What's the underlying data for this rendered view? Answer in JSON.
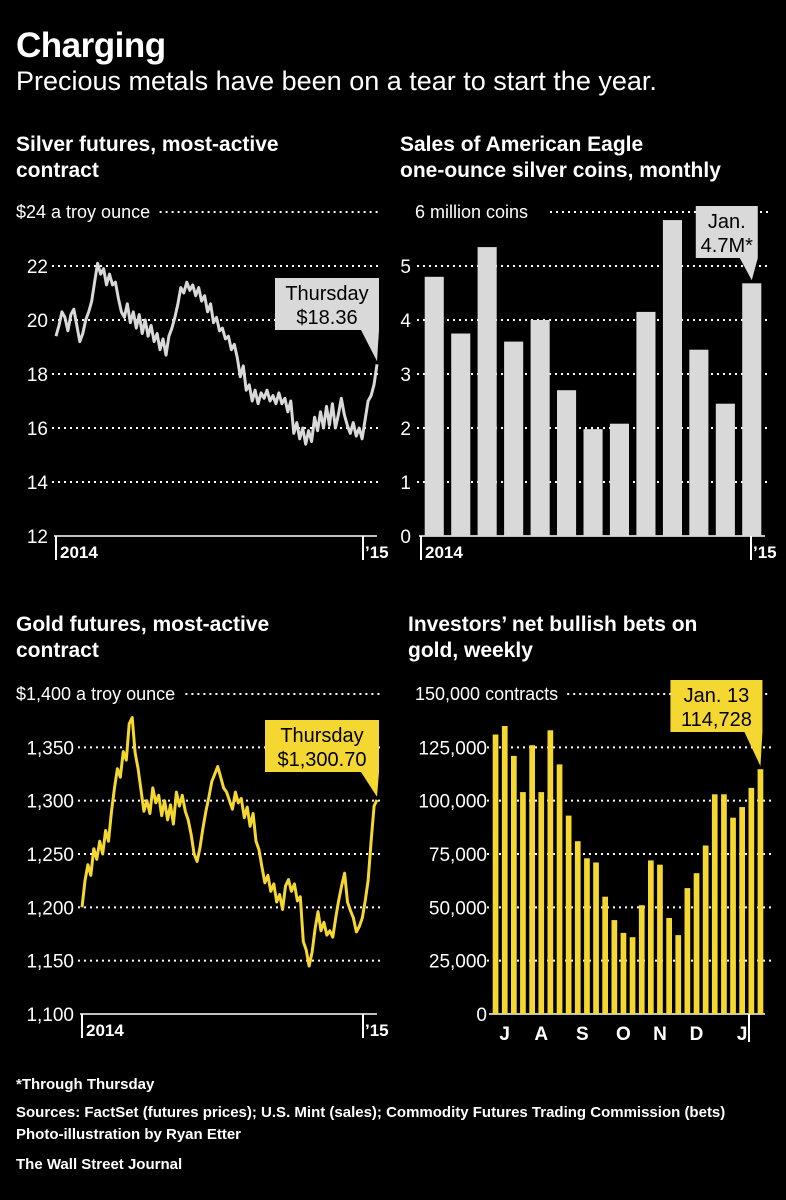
{
  "header": {
    "title": "Charging",
    "subtitle": "Precious metals have been on a tear to start the year."
  },
  "footer": {
    "footnote": "*Through Thursday",
    "sources": "Sources: FactSet (futures prices); U.S. Mint (sales); Commodity Futures Trading Commission (bets)",
    "photo_credit": "Photo-illustration by Ryan Etter",
    "publisher": "The Wall Street Journal"
  },
  "colors": {
    "background": "#000000",
    "silver": "#d9d9d9",
    "gold": "#f5d731",
    "grid": "#ffffff"
  },
  "chart_data": [
    {
      "id": "silver-futures",
      "type": "line",
      "title": "Silver futures, most-active contract",
      "title_lines": [
        "Silver futures, most-active",
        "contract"
      ],
      "unit_label": "$24 a troy ounce",
      "ylim": [
        12,
        24
      ],
      "yticks": [
        12,
        14,
        16,
        18,
        20,
        22,
        24
      ],
      "ytick_labels": [
        "12",
        "14",
        "16",
        "18",
        "20",
        "22",
        "$24 a troy ounce"
      ],
      "x_labels": [
        "2014",
        "’15"
      ],
      "color": "#d9d9d9",
      "annotation": {
        "lines": [
          "Thursday",
          "$18.36"
        ],
        "value": 18.36
      },
      "series": [
        {
          "values": [
            19.4,
            19.8,
            20.3,
            20.1,
            19.6,
            20.2,
            20.4,
            19.8,
            19.2,
            19.5,
            20.0,
            20.3,
            20.7,
            21.4,
            22.1,
            21.7,
            21.9,
            21.3,
            21.7,
            21.3,
            21.4,
            20.8,
            20.3,
            20.1,
            20.6,
            19.9,
            20.3,
            19.7,
            20.2,
            19.5,
            20.0,
            19.4,
            19.8,
            19.2,
            19.5,
            18.9,
            19.3,
            18.7,
            19.4,
            19.7,
            20.1,
            20.6,
            21.2,
            21.0,
            21.4,
            21.1,
            21.3,
            20.9,
            21.2,
            20.7,
            20.9,
            20.3,
            20.6,
            19.9,
            20.1,
            19.6,
            19.7,
            19.3,
            19.4,
            18.9,
            19.1,
            18.6,
            17.9,
            18.3,
            17.4,
            17.6,
            17.0,
            17.4,
            16.9,
            17.3,
            17.1,
            17.4,
            17.0,
            17.2,
            16.9,
            17.3,
            16.9,
            17.1,
            16.6,
            17.0,
            15.8,
            16.2,
            15.6,
            16.0,
            15.4,
            15.9,
            15.5,
            16.4,
            15.9,
            16.6,
            16.0,
            16.8,
            16.1,
            16.9,
            16.0,
            16.5,
            17.1,
            16.5,
            16.1,
            15.8,
            16.2,
            15.7,
            16.0,
            15.6,
            16.3,
            17.0,
            17.2,
            17.6,
            18.36
          ]
        }
      ]
    },
    {
      "id": "silver-eagle-sales",
      "type": "bar",
      "title": "Sales of American Eagle one-ounce silver coins, monthly",
      "title_lines": [
        "Sales of American Eagle",
        "one-ounce silver coins, monthly"
      ],
      "unit_label": "6 million coins",
      "ylim": [
        0,
        6
      ],
      "yticks": [
        0,
        1,
        2,
        3,
        4,
        5,
        6
      ],
      "ytick_labels": [
        "0",
        "1",
        "2",
        "3",
        "4",
        "5",
        "6 million coins"
      ],
      "x_labels": [
        "2014",
        "’15"
      ],
      "color": "#d9d9d9",
      "annotation": {
        "lines": [
          "Jan.",
          "4.7M*"
        ],
        "value": 4.7
      },
      "series": [
        {
          "values": [
            4.8,
            3.75,
            5.35,
            3.6,
            4.0,
            2.7,
            1.98,
            2.08,
            4.15,
            5.85,
            3.45,
            2.45,
            4.68
          ]
        }
      ]
    },
    {
      "id": "gold-futures",
      "type": "line",
      "title": "Gold futures, most-active contract",
      "title_lines": [
        "Gold futures, most-active",
        "contract"
      ],
      "unit_label": "$1,400 a troy ounce",
      "ylim": [
        1100,
        1400
      ],
      "yticks": [
        1100,
        1150,
        1200,
        1250,
        1300,
        1350,
        1400
      ],
      "ytick_labels": [
        "1,100",
        "1,150",
        "1,200",
        "1,250",
        "1,300",
        "1,350",
        "$1,400 a troy ounce"
      ],
      "x_labels": [
        "2014",
        "’15"
      ],
      "color": "#f5d731",
      "annotation": {
        "lines": [
          "Thursday",
          "$1,300.70"
        ],
        "value": 1300.7
      },
      "series": [
        {
          "values": [
            1200,
            1225,
            1240,
            1230,
            1255,
            1245,
            1262,
            1250,
            1272,
            1262,
            1290,
            1312,
            1330,
            1322,
            1346,
            1338,
            1372,
            1378,
            1345,
            1330,
            1310,
            1290,
            1300,
            1288,
            1312,
            1298,
            1305,
            1286,
            1300,
            1282,
            1296,
            1278,
            1308,
            1295,
            1305,
            1290,
            1282,
            1268,
            1250,
            1243,
            1256,
            1274,
            1290,
            1303,
            1318,
            1325,
            1332,
            1322,
            1312,
            1308,
            1300,
            1292,
            1308,
            1298,
            1302,
            1284,
            1294,
            1276,
            1288,
            1262,
            1254,
            1238,
            1223,
            1230,
            1215,
            1222,
            1205,
            1212,
            1198,
            1220,
            1226,
            1215,
            1222,
            1206,
            1210,
            1168,
            1160,
            1145,
            1158,
            1180,
            1196,
            1178,
            1186,
            1174,
            1178,
            1172,
            1190,
            1206,
            1220,
            1232,
            1205,
            1197,
            1190,
            1177,
            1182,
            1190,
            1206,
            1225,
            1262,
            1295,
            1300.7
          ]
        }
      ]
    },
    {
      "id": "gold-net-bullish-bets",
      "type": "bar",
      "title": "Investors’ net bullish bets on gold, weekly",
      "title_lines": [
        "Investors’ net bullish bets on",
        "gold, weekly"
      ],
      "unit_label": "150,000 contracts",
      "ylim": [
        0,
        150000
      ],
      "yticks": [
        0,
        25000,
        50000,
        75000,
        100000,
        125000,
        150000
      ],
      "ytick_labels": [
        "0",
        "25,000",
        "50,000",
        "75,000",
        "100,000",
        "125,000",
        "150,000 contracts"
      ],
      "x_labels": [
        "J",
        "A",
        "S",
        "O",
        "N",
        "D",
        "J"
      ],
      "x_label_index": [
        1.5,
        5.5,
        10,
        14.5,
        18.5,
        22.5,
        27.5
      ],
      "color": "#f5d731",
      "annotation": {
        "lines": [
          "Jan. 13",
          "114,728"
        ],
        "value": 114728
      },
      "series": [
        {
          "values": [
            131000,
            135000,
            121000,
            104000,
            126000,
            104000,
            133000,
            117000,
            93000,
            81000,
            73000,
            71000,
            55000,
            44000,
            38000,
            36000,
            51000,
            72000,
            70000,
            45000,
            37000,
            59000,
            66000,
            79000,
            103000,
            103000,
            92000,
            97000,
            106000,
            114728
          ]
        }
      ]
    }
  ]
}
